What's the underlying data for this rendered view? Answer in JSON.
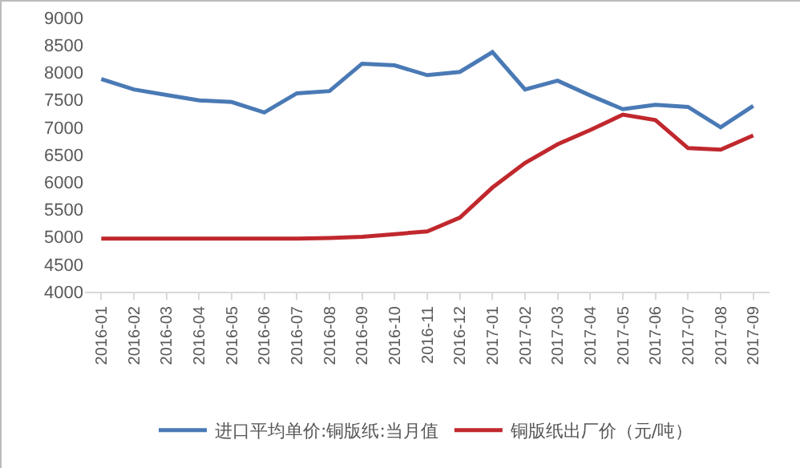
{
  "chart_data": {
    "type": "line",
    "categories": [
      "2016-01",
      "2016-02",
      "2016-03",
      "2016-04",
      "2016-05",
      "2016-06",
      "2016-07",
      "2016-08",
      "2016-09",
      "2016-10",
      "2016-11",
      "2016-12",
      "2017-01",
      "2017-02",
      "2017-03",
      "2017-04",
      "2017-05",
      "2017-06",
      "2017-07",
      "2017-08",
      "2017-09"
    ],
    "series": [
      {
        "name": "进口平均单价:铜版纸:当月值",
        "color": "#4a7ab5",
        "values": [
          7880,
          7690,
          7590,
          7490,
          7460,
          7270,
          7620,
          7660,
          8160,
          8130,
          7950,
          8010,
          8370,
          7690,
          7850,
          7580,
          7330,
          7410,
          7370,
          7000,
          7390
        ]
      },
      {
        "name": "铜版纸出厂价（元/吨）",
        "color": "#c0282d",
        "values": [
          4970,
          4970,
          4970,
          4970,
          4970,
          4970,
          4970,
          4980,
          5000,
          5050,
          5100,
          5350,
          5900,
          6350,
          6690,
          6950,
          7230,
          7130,
          6620,
          6590,
          6850
        ]
      }
    ],
    "ylim": [
      4000,
      9000
    ],
    "yticks": [
      4000,
      4500,
      5000,
      5500,
      6000,
      6500,
      7000,
      7500,
      8000,
      8500,
      9000
    ],
    "grid": false,
    "legend": "bottom",
    "marker": "none",
    "line_style": "solid"
  }
}
